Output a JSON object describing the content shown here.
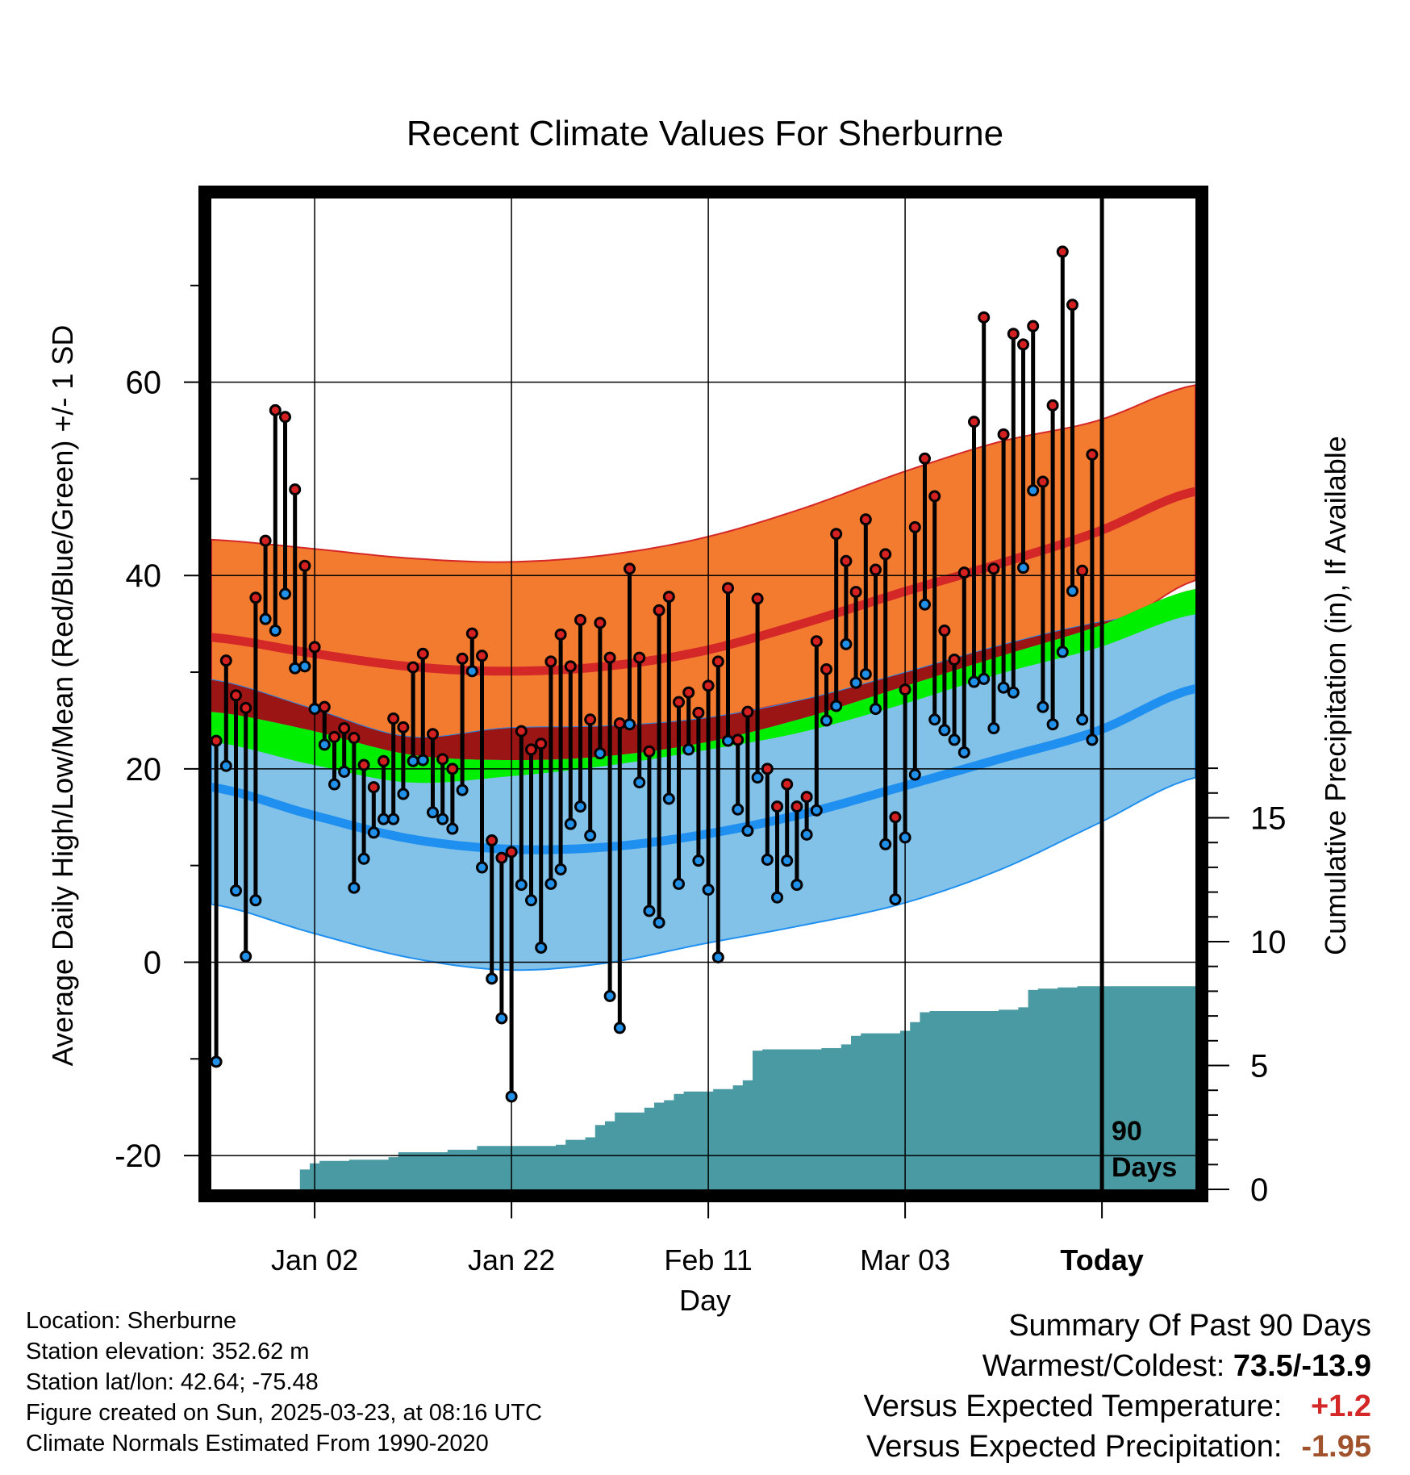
{
  "chart_data": {
    "type": "line",
    "title": "Recent Climate Values For Sherburne",
    "xlabel": "Day",
    "ylabel": "Average Daily High/Low/Mean (Red/Blue/Green) +/- 1 SD",
    "ylabel_right": "Cumulative Precipitation (in), If Available",
    "ylim": [
      -23.5,
      79
    ],
    "ylim_right": [
      0,
      40
    ],
    "y_ticks": [
      -20,
      0,
      20,
      40,
      60
    ],
    "y_ticks_right": [
      0,
      5,
      10,
      15
    ],
    "x_ticks": [
      {
        "day": 10.5,
        "label": "Jan 02"
      },
      {
        "day": 30.5,
        "label": "Jan 22"
      },
      {
        "day": 50.5,
        "label": "Feb 11"
      },
      {
        "day": 70.5,
        "label": "Mar 03"
      },
      {
        "day": 90.5,
        "label": "Today"
      }
    ],
    "today_day": 90.5,
    "today_label_line1": "90",
    "today_label_line2": "Days",
    "normals": {
      "days": [
        0,
        10,
        20,
        30,
        40,
        50,
        60,
        70,
        80,
        90,
        100
      ],
      "high_mean": [
        33.6,
        32.0,
        30.6,
        30.1,
        30.6,
        32.2,
        35.0,
        38.2,
        41.2,
        44.5,
        48.7
      ],
      "high_upper": [
        43.7,
        42.8,
        41.8,
        41.4,
        42.1,
        43.9,
        46.9,
        50.6,
        53.8,
        56.0,
        59.7
      ],
      "high_lower": [
        29.2,
        26.3,
        23.3,
        24.2,
        24.4,
        25.2,
        27.1,
        29.0,
        31.2,
        33.4,
        39.5
      ],
      "mean": [
        25.9,
        24.0,
        21.5,
        20.9,
        21.3,
        22.7,
        25.2,
        28.4,
        31.6,
        34.7,
        38.6
      ],
      "mean_lower": [
        22.8,
        20.5,
        18.6,
        19.2,
        20.3,
        21.9,
        23.8,
        26.6,
        29.8,
        32.5,
        36.0
      ],
      "low_mean": [
        18.1,
        15.3,
        12.8,
        11.7,
        11.9,
        13.2,
        15.3,
        18.1,
        21.0,
        23.9,
        28.3
      ],
      "low_upper": [
        29.2,
        26.3,
        23.3,
        24.2,
        24.4,
        25.2,
        27.1,
        29.8,
        32.7,
        35.1,
        36.4
      ],
      "low_lower": [
        6.0,
        3.1,
        0.5,
        -0.8,
        -0.1,
        1.9,
        3.8,
        6.0,
        9.5,
        14.3,
        19.1
      ]
    },
    "series": [
      {
        "name": "High",
        "color": "#d42020",
        "values": [
          22.9,
          31.2,
          27.6,
          26.3,
          37.7,
          43.6,
          57.1,
          56.4,
          48.9,
          41.0,
          32.6,
          26.4,
          23.3,
          24.2,
          23.2,
          20.4,
          18.1,
          20.8,
          25.2,
          24.3,
          30.5,
          31.9,
          23.6,
          21.0,
          20.0,
          31.4,
          34.0,
          31.7,
          12.6,
          10.8,
          11.4,
          23.9,
          22.0,
          22.6,
          31.1,
          33.9,
          30.6,
          35.4,
          25.1,
          35.1,
          31.5,
          24.7,
          40.7,
          31.5,
          21.8,
          36.4,
          37.8,
          26.9,
          27.9,
          25.8,
          28.6,
          31.1,
          38.7,
          23.0,
          25.9,
          37.6,
          20.0,
          16.1,
          18.4,
          16.1,
          17.1,
          33.2,
          30.3,
          44.3,
          41.5,
          38.3,
          45.8,
          40.6,
          42.2,
          15.0,
          28.2,
          45.0,
          52.1,
          48.2,
          34.3,
          31.3,
          40.3,
          55.9,
          66.7,
          40.7,
          54.6,
          65.0,
          63.9,
          65.8,
          49.7,
          57.6,
          73.5,
          68.0,
          40.5,
          52.5
        ]
      },
      {
        "name": "Low",
        "color": "#2090e8",
        "values": [
          -10.3,
          20.3,
          7.4,
          0.6,
          6.4,
          35.5,
          34.3,
          38.1,
          30.4,
          30.6,
          26.2,
          22.5,
          18.4,
          19.7,
          7.7,
          10.7,
          13.4,
          14.8,
          14.8,
          17.4,
          20.8,
          20.9,
          15.5,
          14.8,
          13.8,
          17.8,
          30.1,
          9.8,
          -1.7,
          -5.8,
          -13.9,
          8.0,
          6.4,
          1.5,
          8.1,
          9.6,
          14.3,
          16.1,
          13.1,
          21.6,
          -3.5,
          -6.8,
          24.6,
          18.6,
          5.3,
          4.1,
          16.9,
          8.1,
          22.0,
          10.5,
          7.5,
          0.5,
          22.9,
          15.8,
          13.6,
          19.1,
          10.6,
          6.7,
          10.5,
          8.0,
          13.2,
          15.7,
          25.0,
          26.5,
          32.9,
          28.9,
          29.8,
          26.2,
          12.2,
          6.5,
          12.9,
          19.4,
          37.0,
          25.1,
          24.0,
          23.0,
          21.7,
          29.0,
          29.3,
          24.2,
          28.4,
          27.9,
          40.8,
          48.8,
          26.4,
          24.6,
          32.1,
          38.4,
          25.1,
          23.0
        ]
      }
    ],
    "precip_cumulative": [
      {
        "day": 0,
        "value": 0
      },
      {
        "day": 8,
        "value": 0
      },
      {
        "day": 9,
        "value": 0.8
      },
      {
        "day": 10,
        "value": 1.05
      },
      {
        "day": 11,
        "value": 1.15
      },
      {
        "day": 14,
        "value": 1.2
      },
      {
        "day": 18,
        "value": 1.3
      },
      {
        "day": 19,
        "value": 1.5
      },
      {
        "day": 24,
        "value": 1.6
      },
      {
        "day": 27,
        "value": 1.75
      },
      {
        "day": 35,
        "value": 1.8
      },
      {
        "day": 36,
        "value": 2.0
      },
      {
        "day": 38,
        "value": 2.1
      },
      {
        "day": 39,
        "value": 2.6
      },
      {
        "day": 40,
        "value": 2.75
      },
      {
        "day": 41,
        "value": 3.1
      },
      {
        "day": 44,
        "value": 3.3
      },
      {
        "day": 45,
        "value": 3.5
      },
      {
        "day": 46,
        "value": 3.6
      },
      {
        "day": 47,
        "value": 3.85
      },
      {
        "day": 48,
        "value": 3.95
      },
      {
        "day": 51,
        "value": 4.05
      },
      {
        "day": 53,
        "value": 4.2
      },
      {
        "day": 54,
        "value": 4.4
      },
      {
        "day": 55,
        "value": 5.6
      },
      {
        "day": 56,
        "value": 5.65
      },
      {
        "day": 62,
        "value": 5.7
      },
      {
        "day": 64,
        "value": 5.85
      },
      {
        "day": 65,
        "value": 6.2
      },
      {
        "day": 66,
        "value": 6.3
      },
      {
        "day": 70,
        "value": 6.4
      },
      {
        "day": 71,
        "value": 6.75
      },
      {
        "day": 72,
        "value": 7.15
      },
      {
        "day": 73,
        "value": 7.2
      },
      {
        "day": 80,
        "value": 7.25
      },
      {
        "day": 82,
        "value": 7.35
      },
      {
        "day": 83,
        "value": 8.05
      },
      {
        "day": 84,
        "value": 8.1
      },
      {
        "day": 86,
        "value": 8.15
      },
      {
        "day": 88,
        "value": 8.2
      },
      {
        "day": 100,
        "value": 8.2
      }
    ],
    "colors": {
      "high_band": "#f37b30",
      "high_line": "#d42828",
      "low_band": "#82c1e8",
      "low_line": "#2090f0",
      "mean_band": "#00ee00",
      "overlap_band": "#9b1515",
      "precip": "#4a9aa4"
    }
  },
  "info": {
    "location": "Location: Sherburne",
    "elevation": "Station elevation: 352.62 m",
    "latlon": "Station lat/lon: 42.64; -75.48",
    "created": "Figure created on Sun, 2025-03-23, at 08:16 UTC",
    "normals": "Climate Normals Estimated From 1990-2020"
  },
  "summary": {
    "title": "Summary Of Past 90 Days",
    "warm_cold_label": "Warmest/Coldest:",
    "warm_cold_value": "73.5/-13.9",
    "temp_label": "Versus Expected Temperature:",
    "temp_value": "+1.2",
    "temp_color": "#d42828",
    "precip_label": "Versus Expected Precipitation:",
    "precip_value": "-1.95",
    "precip_color": "#a0522d"
  }
}
